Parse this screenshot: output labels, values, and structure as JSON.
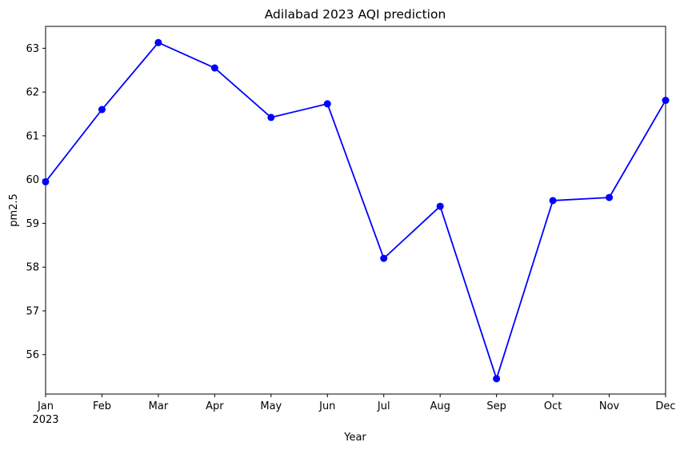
{
  "chart_data": {
    "type": "line",
    "title": "Adilabad 2023 AQI prediction",
    "xlabel": "Year",
    "ylabel": "pm2.5",
    "year_label": "2023",
    "categories": [
      "Jan",
      "Feb",
      "Mar",
      "Apr",
      "May",
      "Jun",
      "Jul",
      "Aug",
      "Sep",
      "Oct",
      "Nov",
      "Dec"
    ],
    "series": [
      {
        "values": [
          59.95,
          61.6,
          63.13,
          62.55,
          61.42,
          61.73,
          58.2,
          59.39,
          55.45,
          59.52,
          59.59,
          61.81
        ]
      }
    ],
    "yticks": [
      56,
      57,
      58,
      59,
      60,
      61,
      62,
      63
    ],
    "ylim": [
      55.1,
      63.5
    ],
    "line_color": "#0000ff",
    "marker": "circle",
    "grid": false,
    "legend": "none"
  }
}
